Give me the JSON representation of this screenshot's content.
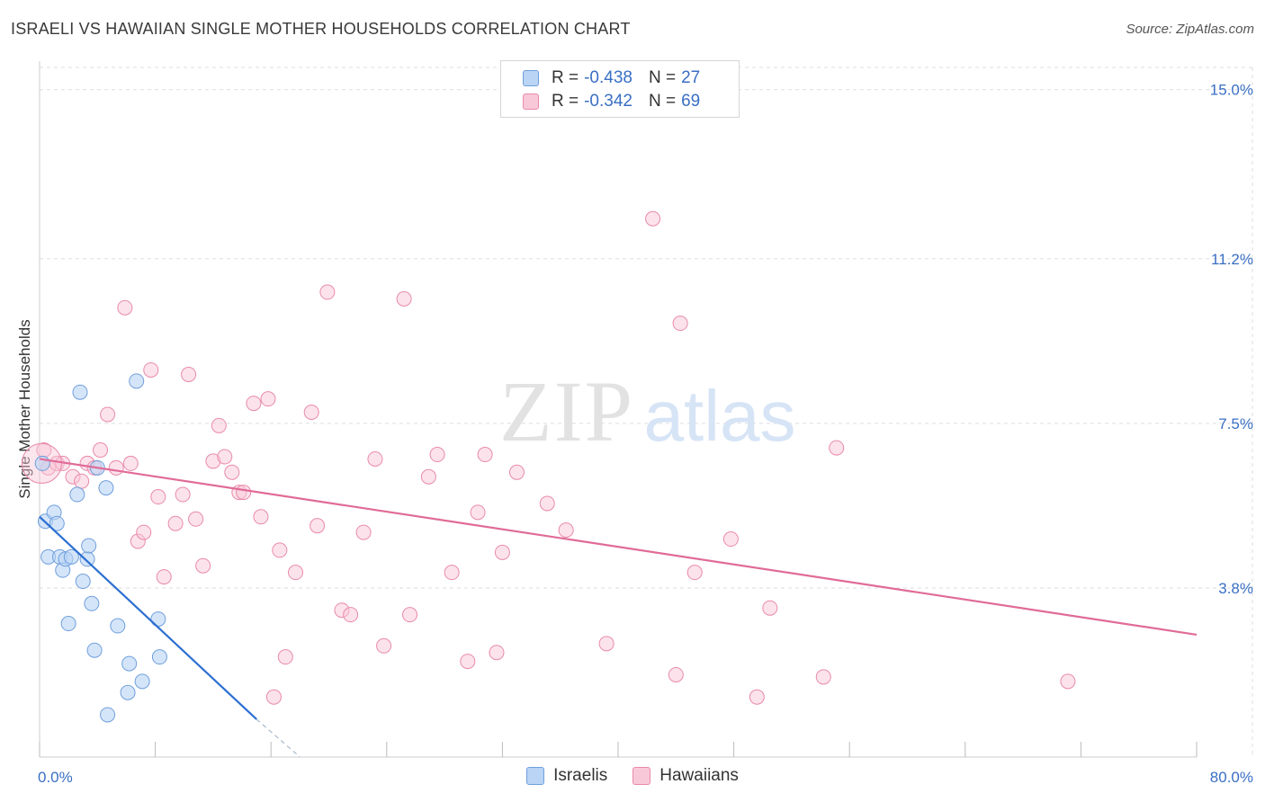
{
  "header": {
    "title": "ISRAELI VS HAWAIIAN SINGLE MOTHER HOUSEHOLDS CORRELATION CHART",
    "source": "Source: ZipAtlas.com"
  },
  "legend": {
    "rows": [
      {
        "r_label": "R =",
        "r_value": "-0.438",
        "n_label": "N =",
        "n_value": "27"
      },
      {
        "r_label": "R =",
        "r_value": "-0.342",
        "n_label": "N =",
        "n_value": "69"
      }
    ]
  },
  "watermark": {
    "zip": "ZIP",
    "atlas": "atlas"
  },
  "colors": {
    "israeli_fill": "#b9d4f5",
    "israeli_stroke": "#6f9fdc",
    "israeli_line": "#2c6fd1",
    "hawaiian_fill": "#f9c8d8",
    "hawaiian_stroke": "#e98aab",
    "hawaiian_line": "#e06b97",
    "grid": "#dddddd",
    "tick_text": "#3a6fc4"
  },
  "chart_data": {
    "type": "scatter",
    "title": "ISRAELI VS HAWAIIAN SINGLE MOTHER HOUSEHOLDS CORRELATION CHART",
    "xlabel": "",
    "ylabel": "Single Mother Households",
    "xlim": [
      0,
      80
    ],
    "ylim": [
      0,
      15.5
    ],
    "x_tick_labels": [
      "0.0%",
      "80.0%"
    ],
    "y_ticks": [
      3.8,
      7.5,
      11.2,
      15.0
    ],
    "y_tick_labels": [
      "3.8%",
      "7.5%",
      "11.2%",
      "15.0%"
    ],
    "grid": true,
    "legend_position": "bottom-center",
    "series": [
      {
        "name": "Israelis",
        "r": -0.438,
        "n": 27,
        "points": [
          [
            0.2,
            6.6
          ],
          [
            0.4,
            5.3
          ],
          [
            0.6,
            4.5
          ],
          [
            1.0,
            5.5
          ],
          [
            1.2,
            5.25
          ],
          [
            1.4,
            4.5
          ],
          [
            1.6,
            4.2
          ],
          [
            1.8,
            4.45
          ],
          [
            2.0,
            3.0
          ],
          [
            2.2,
            4.5
          ],
          [
            2.6,
            5.9
          ],
          [
            2.8,
            8.2
          ],
          [
            3.0,
            3.95
          ],
          [
            3.3,
            4.45
          ],
          [
            3.4,
            4.75
          ],
          [
            3.6,
            3.45
          ],
          [
            3.8,
            2.4
          ],
          [
            4.0,
            6.5
          ],
          [
            4.7,
            0.95
          ],
          [
            4.6,
            6.05
          ],
          [
            5.4,
            2.95
          ],
          [
            6.1,
            1.45
          ],
          [
            6.2,
            2.1
          ],
          [
            6.7,
            8.45
          ],
          [
            7.1,
            1.7
          ],
          [
            8.2,
            3.1
          ],
          [
            8.3,
            2.25
          ]
        ],
        "trend": {
          "x": [
            0.0,
            15.0
          ],
          "y": [
            5.4,
            0.85
          ],
          "dashed_to": [
            18.0,
            0.0
          ]
        }
      },
      {
        "name": "Hawaiians",
        "r": -0.342,
        "n": 69,
        "points": [
          [
            0.3,
            6.9
          ],
          [
            0.6,
            6.5
          ],
          [
            1.2,
            6.6
          ],
          [
            1.6,
            6.6
          ],
          [
            2.3,
            6.3
          ],
          [
            2.9,
            6.2
          ],
          [
            3.3,
            6.6
          ],
          [
            3.8,
            6.5
          ],
          [
            4.2,
            6.9
          ],
          [
            4.7,
            7.7
          ],
          [
            5.3,
            6.5
          ],
          [
            5.9,
            10.1
          ],
          [
            6.3,
            6.6
          ],
          [
            6.8,
            4.85
          ],
          [
            7.2,
            5.05
          ],
          [
            7.7,
            8.7
          ],
          [
            8.2,
            5.85
          ],
          [
            8.6,
            4.05
          ],
          [
            9.4,
            5.25
          ],
          [
            9.9,
            5.9
          ],
          [
            10.3,
            8.6
          ],
          [
            10.8,
            5.35
          ],
          [
            11.3,
            4.3
          ],
          [
            12.0,
            6.65
          ],
          [
            12.4,
            7.45
          ],
          [
            12.8,
            6.75
          ],
          [
            13.3,
            6.4
          ],
          [
            13.8,
            5.95
          ],
          [
            14.1,
            5.95
          ],
          [
            14.8,
            7.95
          ],
          [
            15.3,
            5.4
          ],
          [
            15.8,
            8.05
          ],
          [
            16.2,
            1.35
          ],
          [
            16.6,
            4.65
          ],
          [
            17.0,
            2.25
          ],
          [
            17.7,
            4.15
          ],
          [
            18.8,
            7.75
          ],
          [
            19.2,
            5.2
          ],
          [
            19.9,
            10.45
          ],
          [
            20.9,
            3.3
          ],
          [
            21.5,
            3.2
          ],
          [
            22.4,
            5.05
          ],
          [
            23.2,
            6.7
          ],
          [
            23.8,
            2.5
          ],
          [
            25.2,
            10.3
          ],
          [
            25.6,
            3.2
          ],
          [
            26.9,
            6.3
          ],
          [
            27.5,
            6.8
          ],
          [
            28.5,
            4.15
          ],
          [
            29.6,
            2.15
          ],
          [
            30.3,
            5.5
          ],
          [
            30.8,
            6.8
          ],
          [
            31.6,
            2.35
          ],
          [
            32.0,
            4.6
          ],
          [
            33.0,
            6.4
          ],
          [
            35.1,
            5.7
          ],
          [
            36.4,
            5.1
          ],
          [
            39.2,
            2.55
          ],
          [
            42.4,
            12.1
          ],
          [
            44.0,
            1.85
          ],
          [
            44.3,
            9.75
          ],
          [
            45.3,
            4.15
          ],
          [
            47.8,
            4.9
          ],
          [
            49.6,
            1.35
          ],
          [
            50.5,
            3.35
          ],
          [
            54.2,
            1.8
          ],
          [
            55.1,
            6.95
          ],
          [
            71.1,
            1.7
          ],
          [
            0.15,
            6.6
          ]
        ],
        "trend": {
          "x": [
            0.0,
            80.0
          ],
          "y": [
            6.7,
            2.75
          ]
        }
      }
    ]
  }
}
